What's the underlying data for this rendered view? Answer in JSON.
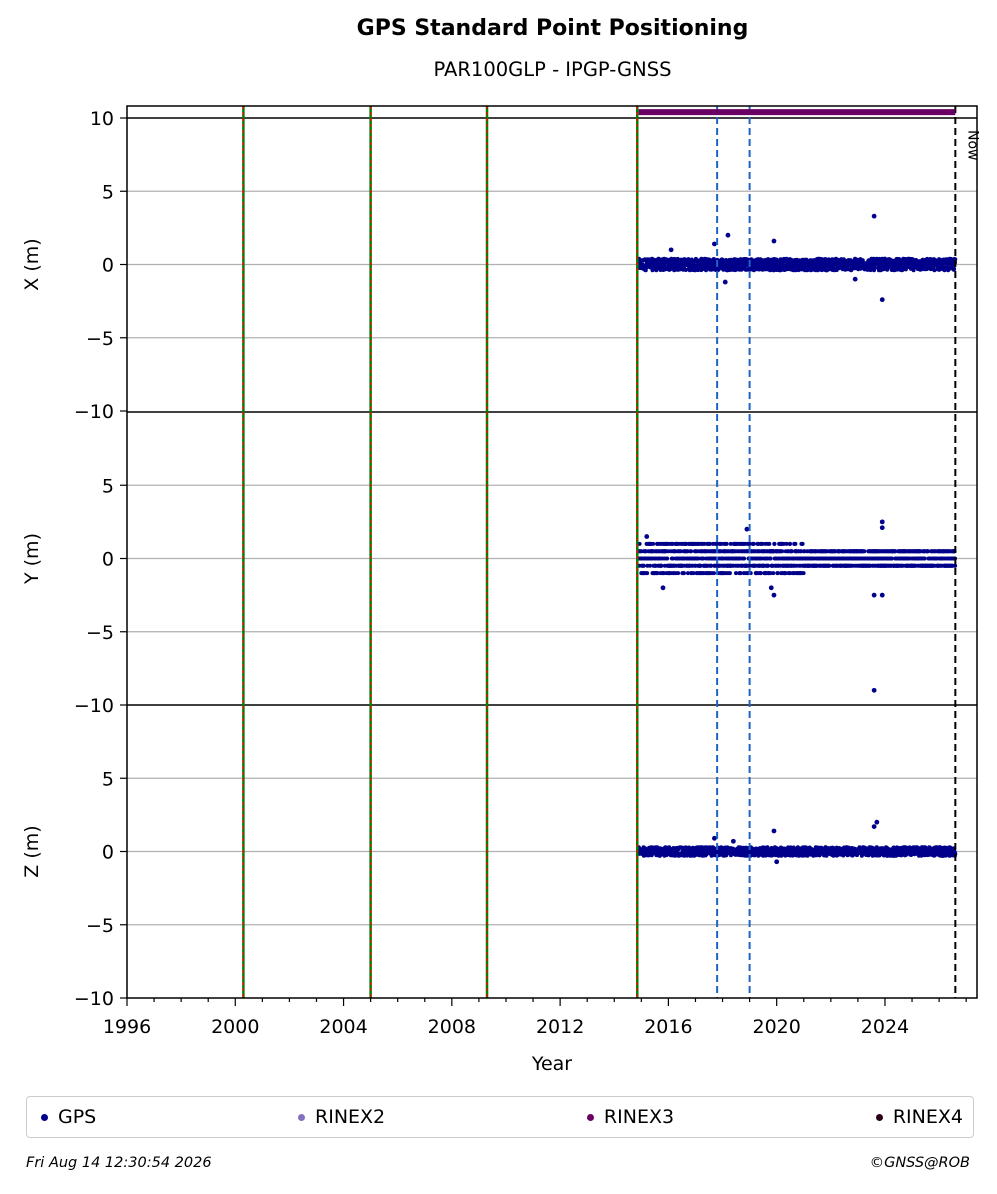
{
  "title": "GPS Standard Point Positioning",
  "subtitle": "PAR100GLP - IPGP-GNSS",
  "footer": {
    "timestamp": "Fri Aug 14 12:30:54 2026",
    "credit": "©GNSS@ROB"
  },
  "chart_data": {
    "type": "scatter",
    "xlabel": "Year",
    "xlim": [
      1996,
      2027.4
    ],
    "x_ticks": [
      1996,
      2000,
      2004,
      2008,
      2012,
      2016,
      2020,
      2024
    ],
    "x_tick_labels": [
      "1996",
      "2000",
      "2004",
      "2008",
      "2012",
      "2016",
      "2020",
      "2024"
    ],
    "panels": [
      {
        "ylabel": "X (m)",
        "ylim": [
          -10,
          10
        ],
        "y_ticks": [
          10,
          5,
          0,
          -5,
          -10
        ],
        "y_tick_labels": [
          "10",
          "5",
          "0",
          "−5",
          "−10"
        ],
        "band": 0.4,
        "outliers": [
          [
            2023.6,
            3.3
          ],
          [
            2018.2,
            2.0
          ],
          [
            2019.9,
            1.6
          ],
          [
            2017.7,
            1.4
          ],
          [
            2018.1,
            -1.2
          ],
          [
            2023.9,
            -2.4
          ],
          [
            2022.9,
            -1.0
          ],
          [
            2016.1,
            1.0
          ]
        ]
      },
      {
        "ylabel": "Y (m)",
        "ylim": [
          -10,
          10
        ],
        "y_ticks": [
          5,
          0,
          -5,
          -10
        ],
        "y_tick_labels": [
          "5",
          "0",
          "−5",
          "−10"
        ],
        "band": 1.1,
        "outliers": [
          [
            2023.6,
            -9.0
          ],
          [
            2023.9,
            2.5
          ],
          [
            2023.9,
            2.1
          ],
          [
            2023.6,
            -2.5
          ],
          [
            2023.9,
            -2.5
          ],
          [
            2019.9,
            -2.5
          ],
          [
            2019.8,
            -2.0
          ],
          [
            2018.9,
            2.0
          ],
          [
            2015.8,
            -2.0
          ],
          [
            2015.2,
            1.5
          ]
        ]
      },
      {
        "ylabel": "Z (m)",
        "ylim": [
          -10,
          10
        ],
        "y_ticks": [
          5,
          0,
          -5,
          -10
        ],
        "y_tick_labels": [
          "5",
          "0",
          "−5",
          "−10"
        ],
        "band": 0.3,
        "outliers": [
          [
            2023.7,
            2.0
          ],
          [
            2023.6,
            1.7
          ],
          [
            2019.9,
            1.4
          ],
          [
            2020.0,
            -0.7
          ],
          [
            2017.7,
            0.9
          ],
          [
            2018.4,
            0.7
          ]
        ]
      }
    ],
    "data_span": [
      2014.9,
      2026.6
    ],
    "equipment_events": [
      2000.3,
      2005.0,
      2009.3,
      2014.85
    ],
    "blue_events": [
      2017.8,
      2019.0
    ],
    "now": {
      "x": 2026.6,
      "label": "Now"
    },
    "rinex3_bar": {
      "x_start": 2014.9,
      "x_end": 2026.6,
      "y": 10.4
    },
    "colors": {
      "gps": "#00008b",
      "rinex2": "#8470c0",
      "rinex3": "#6a0064",
      "rinex4": "#2a0018",
      "grid": "#b0b0b0",
      "event_green": "#008000",
      "event_red": "#ff0000",
      "event_blue": "#1e64c8"
    }
  },
  "legend": [
    {
      "label": "GPS",
      "color": "#00008b"
    },
    {
      "label": "RINEX2",
      "color": "#8470c0"
    },
    {
      "label": "RINEX3",
      "color": "#6a0064"
    },
    {
      "label": "RINEX4",
      "color": "#2a0018"
    }
  ]
}
